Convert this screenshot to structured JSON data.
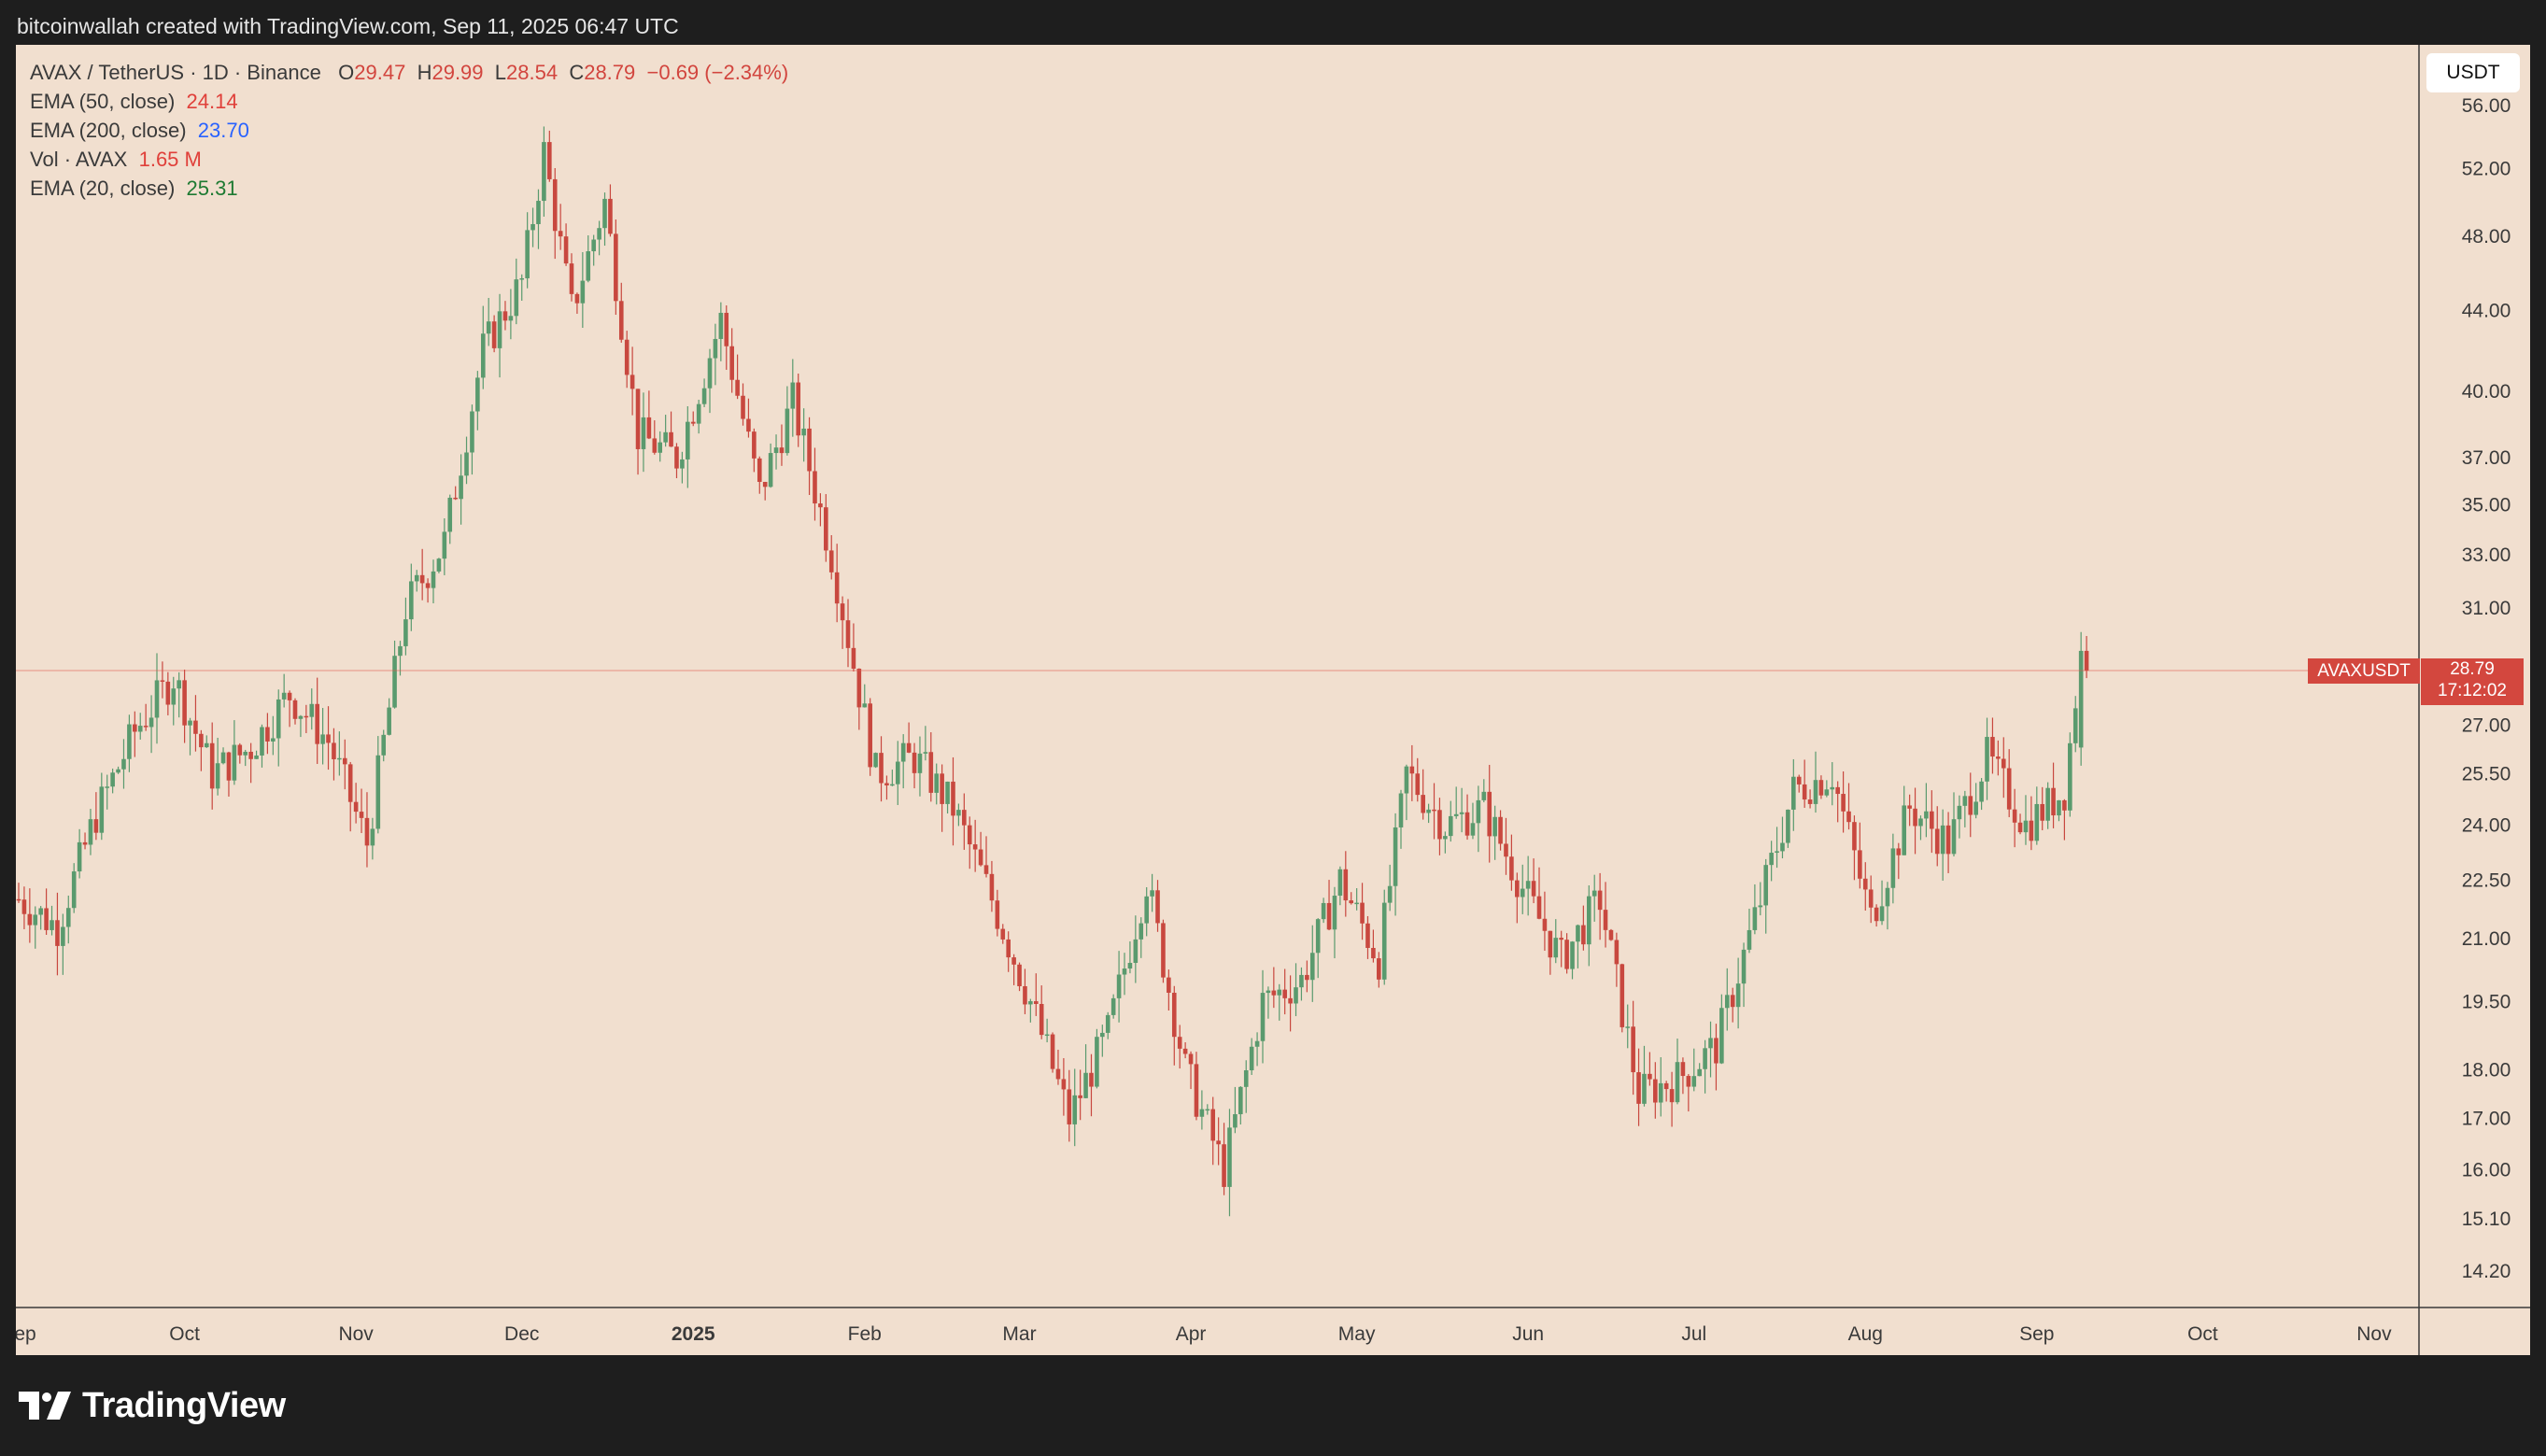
{
  "header": {
    "attribution": "bitcoinwallah created with TradingView.com, Sep 11, 2025 06:47 UTC"
  },
  "legend": {
    "symbol_line": "AVAX / TetherUS · 1D · Binance",
    "o_label": "O",
    "o_value": "29.47",
    "h_label": "H",
    "h_value": "29.99",
    "l_label": "L",
    "l_value": "28.54",
    "c_label": "C",
    "c_value": "28.79",
    "change": "−0.69 (−2.34%)",
    "indicators": [
      {
        "name": "EMA (50, close)",
        "value": "24.14",
        "color": "#e0403a"
      },
      {
        "name": "EMA (200, close)",
        "value": "23.70",
        "color": "#2962ff"
      },
      {
        "name": "Vol · AVAX",
        "value": "1.65 M",
        "color": "#e0403a"
      },
      {
        "name": "EMA (20, close)",
        "value": "25.31",
        "color": "#1e7a32"
      }
    ]
  },
  "currency_button": "USDT",
  "price_tag": {
    "symbol": "AVAXUSDT",
    "price": "28.79",
    "countdown": "17:12:02",
    "color": "#d3473e"
  },
  "branding": {
    "logo_text": "TradingView"
  },
  "colors": {
    "up": "#5a9a6e",
    "down": "#c8483f",
    "background": "#f1dfcf"
  },
  "chart_data": {
    "type": "candlestick",
    "y_scale": "log",
    "y_ticks": [
      "56.00",
      "52.00",
      "48.00",
      "44.00",
      "40.00",
      "37.00",
      "35.00",
      "33.00",
      "31.00",
      "27.00",
      "25.50",
      "24.00",
      "22.50",
      "21.00",
      "19.50",
      "18.00",
      "17.00",
      "16.00",
      "15.10",
      "14.20"
    ],
    "x_ticks": [
      "Sep",
      "Oct",
      "Nov",
      "Dec",
      "2025",
      "Feb",
      "Mar",
      "Apr",
      "May",
      "Jun",
      "Jul",
      "Aug",
      "Sep",
      "Oct",
      "Nov"
    ],
    "bold_x_tick": "2025",
    "last_price": 28.79,
    "close_anchors": [
      {
        "date": "2024-09-01",
        "close": 22.0
      },
      {
        "date": "2024-09-08",
        "close": 21.3
      },
      {
        "date": "2024-09-15",
        "close": 24.3
      },
      {
        "date": "2024-09-22",
        "close": 26.8
      },
      {
        "date": "2024-09-29",
        "close": 28.6
      },
      {
        "date": "2024-10-06",
        "close": 25.5
      },
      {
        "date": "2024-10-13",
        "close": 26.3
      },
      {
        "date": "2024-10-20",
        "close": 28.0
      },
      {
        "date": "2024-10-27",
        "close": 26.5
      },
      {
        "date": "2024-11-03",
        "close": 23.5
      },
      {
        "date": "2024-11-10",
        "close": 31.0
      },
      {
        "date": "2024-11-17",
        "close": 33.5
      },
      {
        "date": "2024-11-24",
        "close": 42.0
      },
      {
        "date": "2024-12-01",
        "close": 45.5
      },
      {
        "date": "2024-12-05",
        "close": 53.0
      },
      {
        "date": "2024-12-10",
        "close": 44.0
      },
      {
        "date": "2024-12-16",
        "close": 50.0
      },
      {
        "date": "2024-12-22",
        "close": 38.0
      },
      {
        "date": "2024-12-29",
        "close": 37.0
      },
      {
        "date": "2025-01-06",
        "close": 43.5
      },
      {
        "date": "2025-01-13",
        "close": 35.5
      },
      {
        "date": "2025-01-19",
        "close": 39.5
      },
      {
        "date": "2025-01-26",
        "close": 33.0
      },
      {
        "date": "2025-02-03",
        "close": 25.5
      },
      {
        "date": "2025-02-10",
        "close": 26.0
      },
      {
        "date": "2025-02-17",
        "close": 24.5
      },
      {
        "date": "2025-02-24",
        "close": 22.0
      },
      {
        "date": "2025-03-03",
        "close": 19.5
      },
      {
        "date": "2025-03-10",
        "close": 17.0
      },
      {
        "date": "2025-03-17",
        "close": 18.8
      },
      {
        "date": "2025-03-24",
        "close": 22.5
      },
      {
        "date": "2025-03-31",
        "close": 18.0
      },
      {
        "date": "2025-04-07",
        "close": 16.0
      },
      {
        "date": "2025-04-14",
        "close": 19.5
      },
      {
        "date": "2025-04-21",
        "close": 20.0
      },
      {
        "date": "2025-04-28",
        "close": 22.5
      },
      {
        "date": "2025-05-05",
        "close": 20.5
      },
      {
        "date": "2025-05-10",
        "close": 25.5
      },
      {
        "date": "2025-05-17",
        "close": 24.0
      },
      {
        "date": "2025-05-24",
        "close": 24.5
      },
      {
        "date": "2025-06-01",
        "close": 22.0
      },
      {
        "date": "2025-06-07",
        "close": 20.5
      },
      {
        "date": "2025-06-14",
        "close": 22.0
      },
      {
        "date": "2025-06-21",
        "close": 17.5
      },
      {
        "date": "2025-06-28",
        "close": 17.8
      },
      {
        "date": "2025-07-05",
        "close": 18.5
      },
      {
        "date": "2025-07-12",
        "close": 21.5
      },
      {
        "date": "2025-07-19",
        "close": 25.0
      },
      {
        "date": "2025-07-26",
        "close": 25.5
      },
      {
        "date": "2025-08-02",
        "close": 21.5
      },
      {
        "date": "2025-08-09",
        "close": 24.5
      },
      {
        "date": "2025-08-16",
        "close": 23.5
      },
      {
        "date": "2025-08-23",
        "close": 26.0
      },
      {
        "date": "2025-08-30",
        "close": 24.0
      },
      {
        "date": "2025-09-06",
        "close": 25.0
      },
      {
        "date": "2025-09-09",
        "close": 29.47
      },
      {
        "date": "2025-09-10",
        "close": 28.79
      }
    ]
  }
}
